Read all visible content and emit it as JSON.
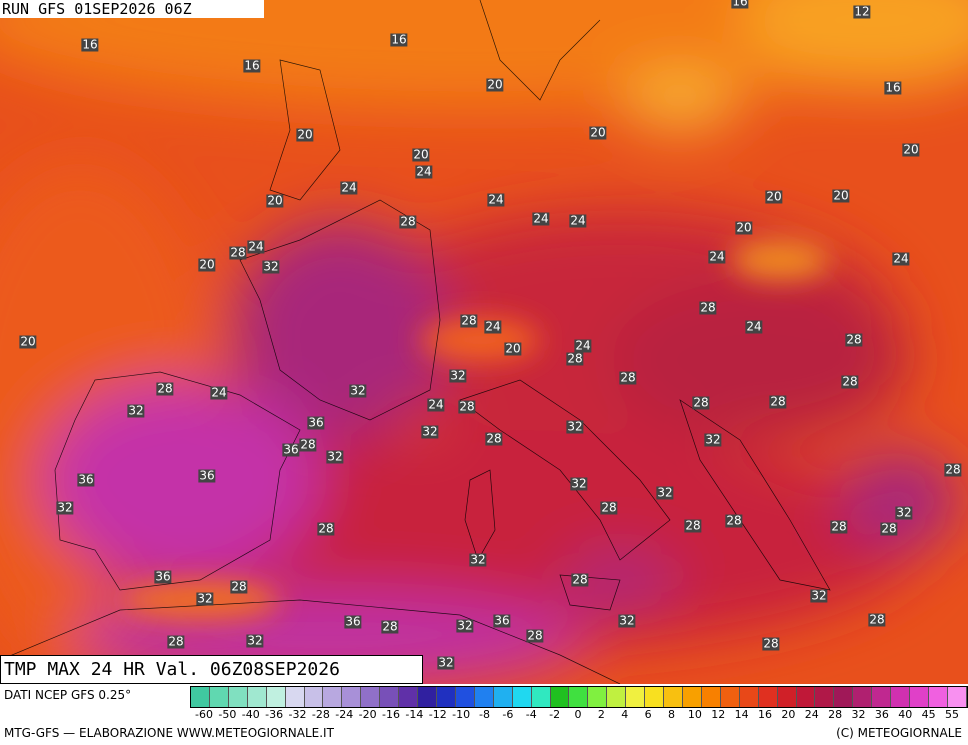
{
  "header": {
    "run": "RUN GFS 01SEP2026 06Z"
  },
  "footer": {
    "valid": "TMP MAX 24 HR Val. 06Z08SEP2026",
    "source": "DATI NCEP GFS 0.25°",
    "credit": "MTG-GFS — ELABORAZIONE WWW.METEOGIORNALE.IT",
    "copyright": "(C) METEOGIORNALE"
  },
  "legend": {
    "ticks": [
      -60,
      -50,
      -40,
      -36,
      -32,
      -28,
      -24,
      -20,
      -16,
      -14,
      -12,
      -10,
      -8,
      -6,
      -4,
      -2,
      0,
      2,
      4,
      6,
      8,
      10,
      12,
      14,
      16,
      20,
      24,
      28,
      32,
      36,
      40,
      45,
      55
    ],
    "colors": [
      "#40c8a0",
      "#60d8b0",
      "#80e0c0",
      "#a0e8d0",
      "#c0f0e0",
      "#d8d8f0",
      "#c8c0e8",
      "#b8a8e0",
      "#a890d8",
      "#9070c8",
      "#7850b8",
      "#6030a8",
      "#3020a0",
      "#2030c0",
      "#2050e0",
      "#2080f0",
      "#20b0f0",
      "#20d8f0",
      "#30e8c0",
      "#20c020",
      "#40e040",
      "#80f040",
      "#c0f040",
      "#f0f040",
      "#f8e020",
      "#f8c010",
      "#f8a000",
      "#f88000",
      "#f06010",
      "#e84818",
      "#e03020",
      "#d02028",
      "#c01838",
      "#b01848",
      "#a01858",
      "#b02070",
      "#c02890",
      "#d030b0",
      "#e040c8",
      "#f060e0",
      "#f890f0"
    ],
    "title": "TMP"
  },
  "map": {
    "labels": [
      "16",
      "16",
      "16",
      "12",
      "16",
      "16",
      "20",
      "20",
      "20",
      "20",
      "24",
      "20",
      "24",
      "20",
      "24",
      "20",
      "20",
      "28",
      "24",
      "24",
      "20",
      "24",
      "28",
      "32",
      "20",
      "24",
      "24",
      "28",
      "20",
      "28",
      "24",
      "24",
      "28",
      "20",
      "24",
      "28",
      "32",
      "28",
      "28",
      "28",
      "24",
      "32",
      "32",
      "24",
      "28",
      "28",
      "28",
      "36",
      "28",
      "36",
      "32",
      "32",
      "28",
      "32",
      "32",
      "36",
      "36",
      "28",
      "32",
      "32",
      "32",
      "28",
      "28",
      "28",
      "28",
      "28",
      "28",
      "32",
      "32",
      "36",
      "28",
      "28",
      "32",
      "32",
      "28",
      "32",
      "36",
      "28",
      "32",
      "36",
      "28",
      "32",
      "28",
      "28",
      "32"
    ]
  }
}
